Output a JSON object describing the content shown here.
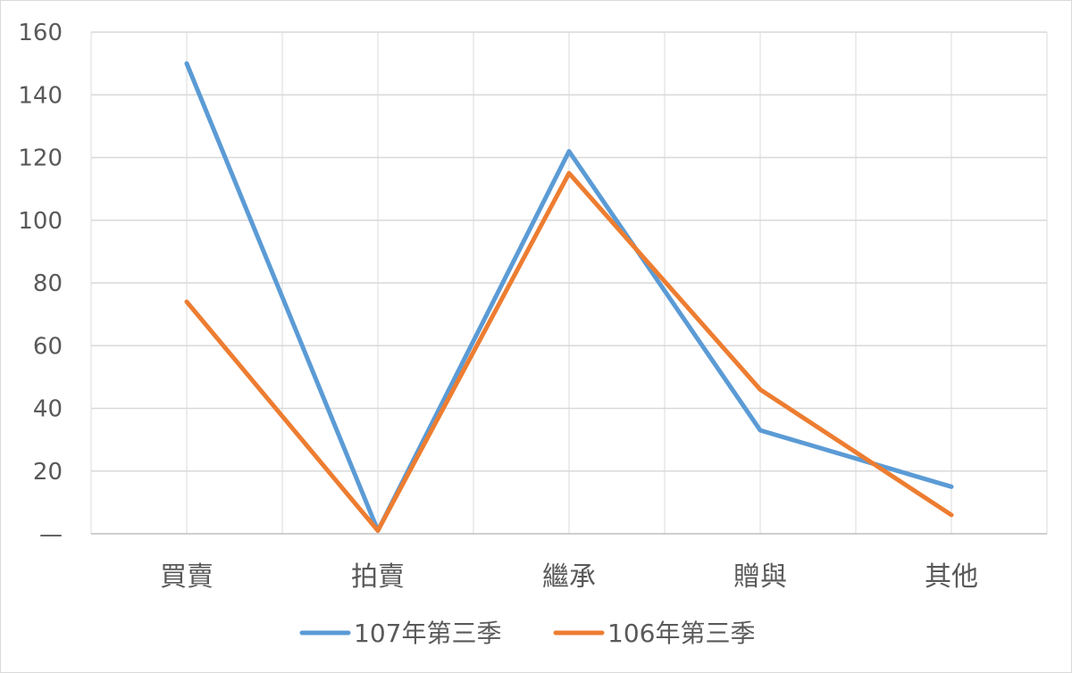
{
  "chart_data": {
    "type": "line",
    "categories": [
      "買賣",
      "拍賣",
      "繼承",
      "贈與",
      "其他"
    ],
    "y_ticks": [
      "—",
      "20",
      "40",
      "60",
      "80",
      "100",
      "120",
      "140",
      "160"
    ],
    "ylim": [
      0,
      160
    ],
    "grid": true,
    "legend_position": "bottom",
    "series": [
      {
        "name": "107年第三季",
        "color": "#5b9bd5",
        "values": [
          150,
          1,
          122,
          33,
          15
        ]
      },
      {
        "name": "106年第三季",
        "color": "#ed7d31",
        "values": [
          74,
          1,
          115,
          46,
          6
        ]
      }
    ]
  }
}
